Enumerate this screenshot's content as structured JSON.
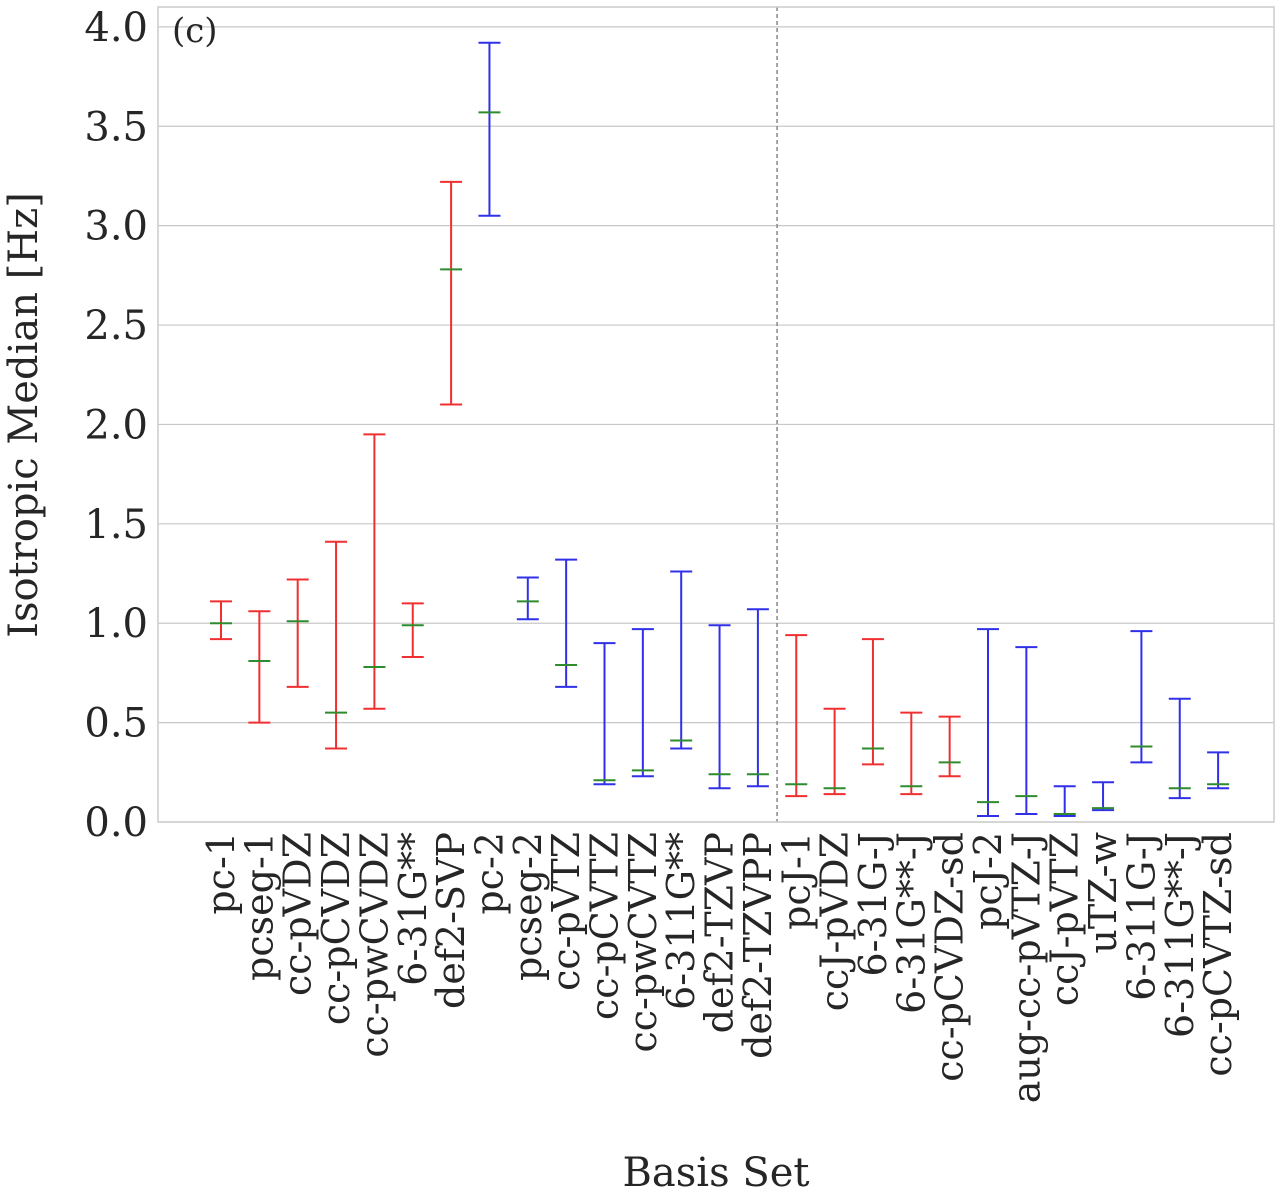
{
  "chart_data": {
    "type": "errorbar",
    "panel_label": "(c)",
    "xlabel": "Basis Set",
    "ylabel": "Isotropic Median [Hz]",
    "ylim": [
      0,
      4.1
    ],
    "yticks": [
      0.0,
      0.5,
      1.0,
      1.5,
      2.0,
      2.5,
      3.0,
      3.5,
      4.0
    ],
    "ytick_labels": [
      "0.0",
      "0.5",
      "1.0",
      "1.5",
      "2.0",
      "2.5",
      "3.0",
      "3.5",
      "4.0"
    ],
    "grid": true,
    "divider_after_index": 14,
    "colors": {
      "red": "#f03030",
      "blue": "#3030e8",
      "median": "#2e8b2e",
      "grid": "#c8c8c8",
      "divider": "#888888",
      "spine": "#cccccc"
    },
    "categories": [
      {
        "name": "pc-1",
        "low": 0.92,
        "median": 1.0,
        "high": 1.11,
        "color": "red"
      },
      {
        "name": "pcseg-1",
        "low": 0.5,
        "median": 0.81,
        "high": 1.06,
        "color": "red"
      },
      {
        "name": "cc-pVDZ",
        "low": 0.68,
        "median": 1.01,
        "high": 1.22,
        "color": "red"
      },
      {
        "name": "cc-pCVDZ",
        "low": 0.37,
        "median": 0.55,
        "high": 1.41,
        "color": "red"
      },
      {
        "name": "cc-pwCVDZ",
        "low": 0.57,
        "median": 0.78,
        "high": 1.95,
        "color": "red"
      },
      {
        "name": "6-31G**",
        "low": 0.83,
        "median": 0.99,
        "high": 1.1,
        "color": "red"
      },
      {
        "name": "def2-SVP",
        "low": 2.1,
        "median": 2.78,
        "high": 3.22,
        "color": "red"
      },
      {
        "name": "pc-2",
        "low": 3.05,
        "median": 3.57,
        "high": 3.92,
        "color": "blue"
      },
      {
        "name": "pcseg-2",
        "low": 1.02,
        "median": 1.11,
        "high": 1.23,
        "color": "blue"
      },
      {
        "name": "cc-pVTZ",
        "low": 0.68,
        "median": 0.79,
        "high": 1.32,
        "color": "blue"
      },
      {
        "name": "cc-pCVTZ",
        "low": 0.19,
        "median": 0.21,
        "high": 0.9,
        "color": "blue"
      },
      {
        "name": "cc-pwCVTZ",
        "low": 0.23,
        "median": 0.26,
        "high": 0.97,
        "color": "blue"
      },
      {
        "name": "6-311G**",
        "low": 0.37,
        "median": 0.41,
        "high": 1.26,
        "color": "blue"
      },
      {
        "name": "def2-TZVP",
        "low": 0.17,
        "median": 0.24,
        "high": 0.99,
        "color": "blue"
      },
      {
        "name": "def2-TZVPP",
        "low": 0.18,
        "median": 0.24,
        "high": 1.07,
        "color": "blue"
      },
      {
        "name": "pcJ-1",
        "low": 0.13,
        "median": 0.19,
        "high": 0.94,
        "color": "red"
      },
      {
        "name": "ccJ-pVDZ",
        "low": 0.14,
        "median": 0.17,
        "high": 0.57,
        "color": "red"
      },
      {
        "name": "6-31G-J",
        "low": 0.29,
        "median": 0.37,
        "high": 0.92,
        "color": "red"
      },
      {
        "name": "6-31G**-J",
        "low": 0.14,
        "median": 0.18,
        "high": 0.55,
        "color": "red"
      },
      {
        "name": "cc-pCVDZ-sd",
        "low": 0.23,
        "median": 0.3,
        "high": 0.53,
        "color": "red"
      },
      {
        "name": "pcJ-2",
        "low": 0.03,
        "median": 0.1,
        "high": 0.97,
        "color": "blue"
      },
      {
        "name": "aug-cc-pVTZ-J",
        "low": 0.04,
        "median": 0.13,
        "high": 0.88,
        "color": "blue"
      },
      {
        "name": "ccJ-pVTZ",
        "low": 0.03,
        "median": 0.04,
        "high": 0.18,
        "color": "blue"
      },
      {
        "name": "uTZ-w",
        "low": 0.06,
        "median": 0.07,
        "high": 0.2,
        "color": "blue"
      },
      {
        "name": "6-311G-J",
        "low": 0.3,
        "median": 0.38,
        "high": 0.96,
        "color": "blue"
      },
      {
        "name": "6-311G**-J",
        "low": 0.12,
        "median": 0.17,
        "high": 0.62,
        "color": "blue"
      },
      {
        "name": "cc-pCVTZ-sd",
        "low": 0.17,
        "median": 0.19,
        "high": 0.35,
        "color": "blue"
      }
    ]
  }
}
